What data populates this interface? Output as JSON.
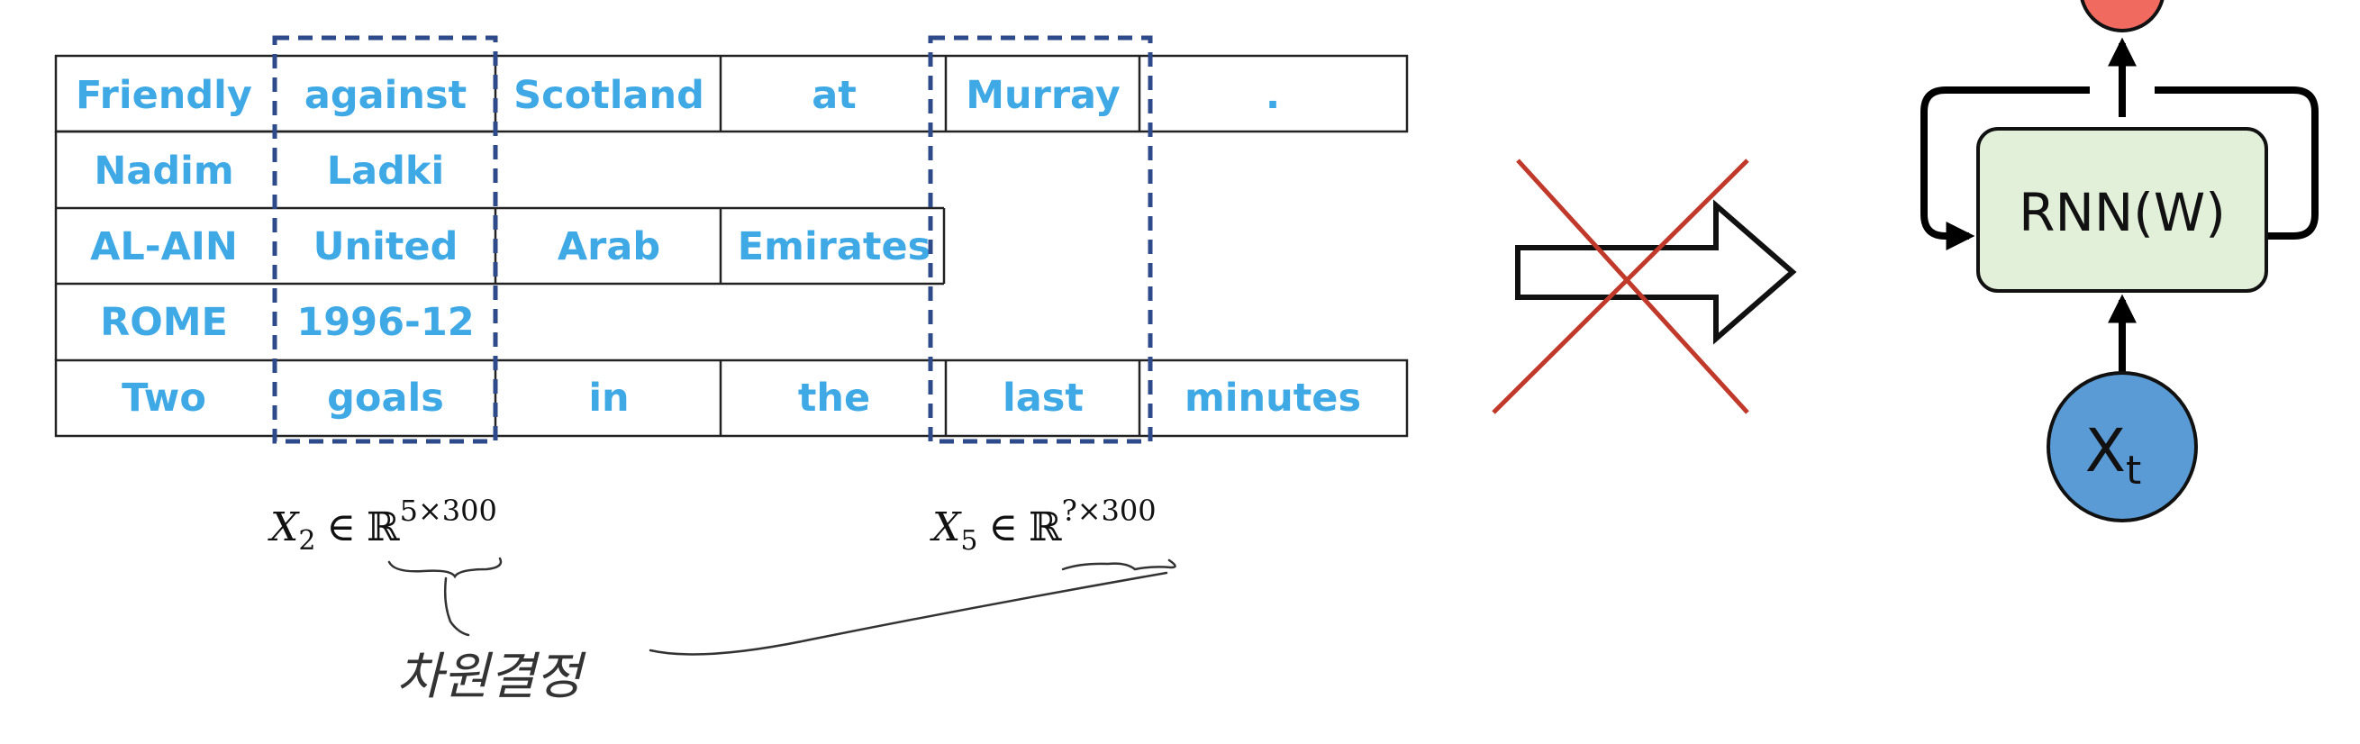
{
  "table": {
    "rows": [
      [
        "Friendly",
        "against",
        "Scotland",
        "at",
        "Murray",
        "."
      ],
      [
        "Nadim",
        "Ladki"
      ],
      [
        "AL-AIN",
        "United",
        "Arab",
        "Emirates"
      ],
      [
        "ROME",
        "1996-12"
      ],
      [
        "Two",
        "goals",
        "in",
        "the",
        "last",
        "minutes"
      ]
    ]
  },
  "equations": {
    "left": {
      "var": "X",
      "sub": "2",
      "elem": "∈",
      "set": "ℝ",
      "sup": "5×300"
    },
    "right": {
      "var": "X",
      "sub": "5",
      "elem": "∈",
      "set": "ℝ",
      "sup": "?×300"
    }
  },
  "annotation": {
    "handwritten": "차원결정"
  },
  "rnn": {
    "block_label": "RNN(W)",
    "input_label": "X",
    "input_sub": "t"
  },
  "colors": {
    "text_blue": "#3fa9e6",
    "dashed_box": "#2e4a8a",
    "cross_red": "#c0392b",
    "rnn_fill": "#e2efd9",
    "input_fill": "#5b9bd5",
    "output_fill": "#f06a5f"
  }
}
